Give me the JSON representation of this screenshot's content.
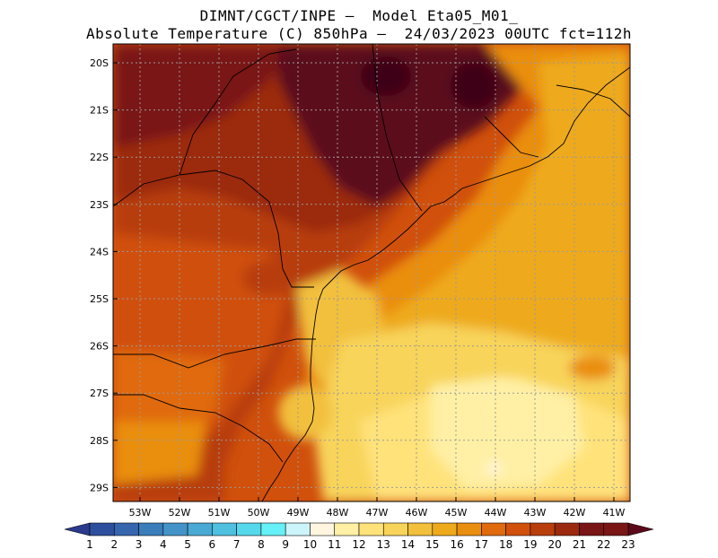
{
  "title_line1": "DIMNT/CGCT/INPE –  Model Eta05_M01_",
  "title_line2": "Absolute Temperature (C) 850hPa –  24/03/2023 00UTC fct=112h",
  "map": {
    "lat_labels": [
      "20S",
      "21S",
      "22S",
      "23S",
      "24S",
      "25S",
      "26S",
      "27S",
      "28S",
      "29S"
    ],
    "lon_labels": [
      "53W",
      "52W",
      "51W",
      "50W",
      "49W",
      "48W",
      "47W",
      "46W",
      "45W",
      "44W",
      "43W",
      "42W",
      "41W"
    ]
  },
  "colorbar": {
    "labels": [
      "1",
      "2",
      "3",
      "4",
      "5",
      "6",
      "7",
      "8",
      "9",
      "10",
      "11",
      "12",
      "13",
      "14",
      "15",
      "16",
      "17",
      "18",
      "19",
      "20",
      "21",
      "22",
      "23"
    ],
    "colors": [
      "#2a3a8c",
      "#2e4f9e",
      "#3566ae",
      "#3a7dbb",
      "#4493c8",
      "#4aa9d4",
      "#4fc0e0",
      "#56d8ec",
      "#66f0f7",
      "#ccf5fb",
      "#fff6e0",
      "#fff0a6",
      "#ffe27a",
      "#f8d45a",
      "#f2c03c",
      "#eeaa1a",
      "#ea8e10",
      "#e06a0e",
      "#d0500c",
      "#b83e0c",
      "#9c2a0e",
      "#7a1616",
      "#5c0a1a"
    ]
  }
}
